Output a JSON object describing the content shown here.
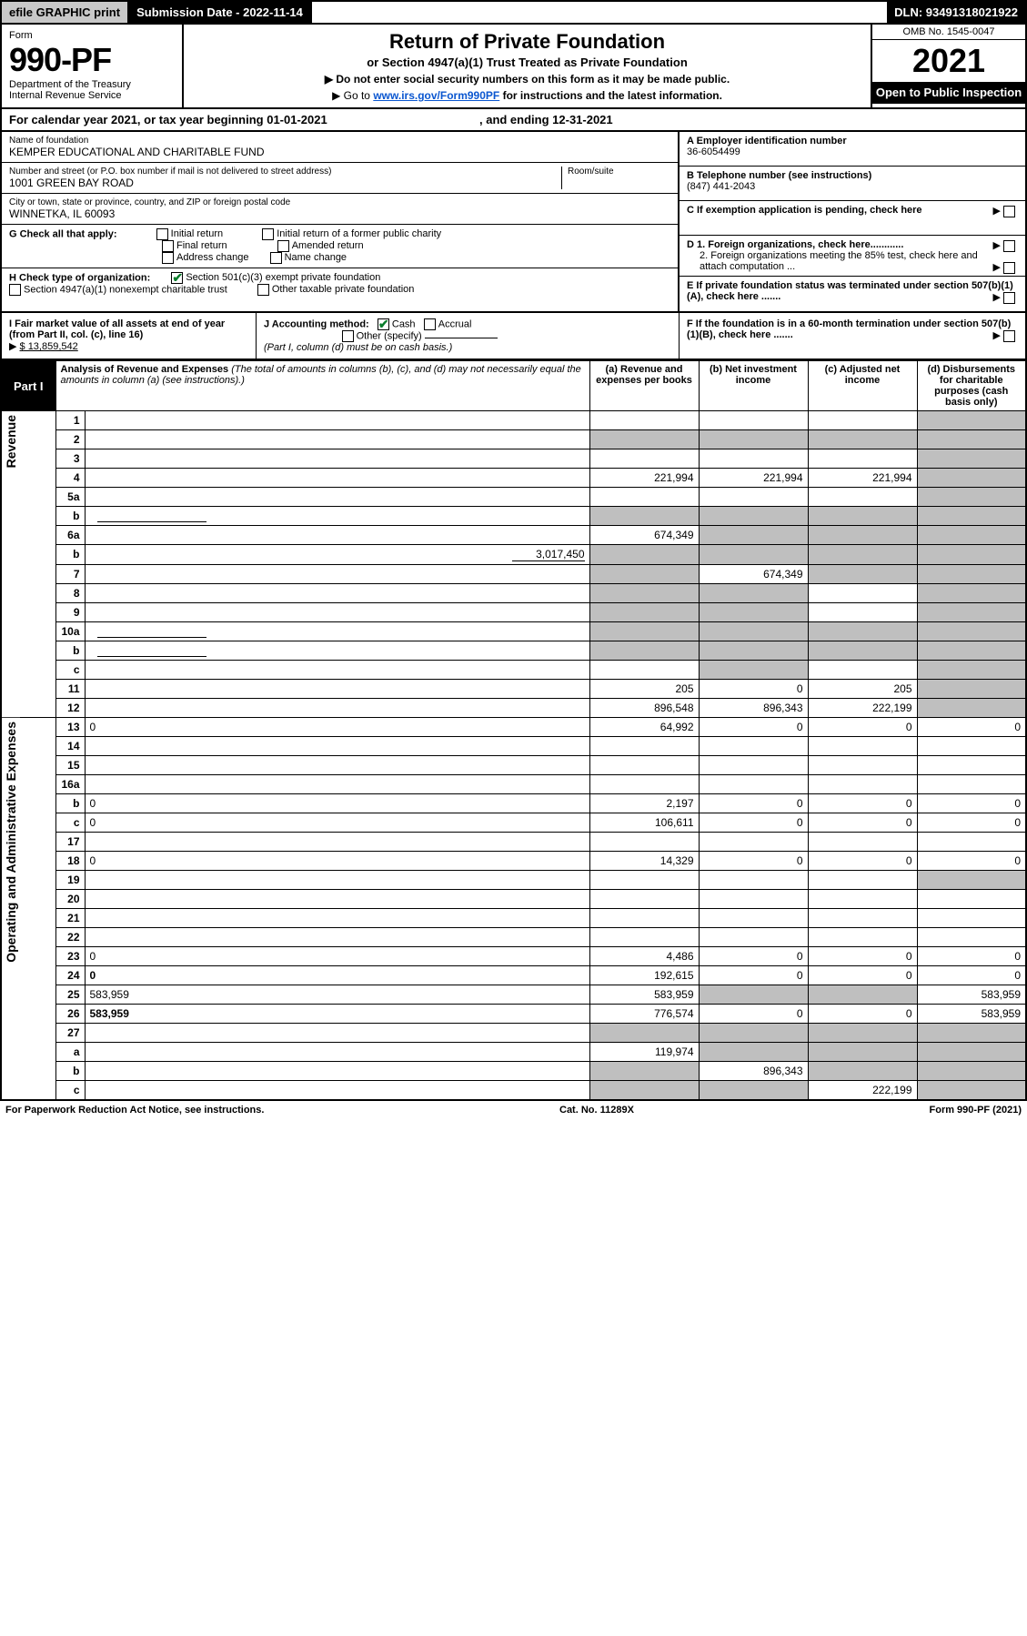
{
  "topbar": {
    "efile": "efile GRAPHIC print",
    "sub_label": "Submission Date - 2022-11-14",
    "dln": "DLN: 93491318021922"
  },
  "header": {
    "form_label": "Form",
    "form_no": "990-PF",
    "dept": "Department of the Treasury\nInternal Revenue Service",
    "title": "Return of Private Foundation",
    "subtitle": "or Section 4947(a)(1) Trust Treated as Private Foundation",
    "instr1": "▶ Do not enter social security numbers on this form as it may be made public.",
    "instr2_pre": "▶ Go to ",
    "instr2_link": "www.irs.gov/Form990PF",
    "instr2_post": " for instructions and the latest information.",
    "omb": "OMB No. 1545-0047",
    "year": "2021",
    "open": "Open to Public Inspection"
  },
  "yearline": {
    "pre": "For calendar year 2021, or tax year beginning 01-01-2021",
    "mid": ", and ending 12-31-2021"
  },
  "info": {
    "name_lbl": "Name of foundation",
    "name_val": "KEMPER EDUCATIONAL AND CHARITABLE FUND",
    "addr_lbl": "Number and street (or P.O. box number if mail is not delivered to street address)",
    "addr_val": "1001 GREEN BAY ROAD",
    "room_lbl": "Room/suite",
    "city_lbl": "City or town, state or province, country, and ZIP or foreign postal code",
    "city_val": "WINNETKA, IL  60093",
    "ein_lbl": "A Employer identification number",
    "ein_val": "36-6054499",
    "tel_lbl": "B Telephone number (see instructions)",
    "tel_val": "(847) 441-2043",
    "c_lbl": "C If exemption application is pending, check here",
    "d1_lbl": "D 1. Foreign organizations, check here............",
    "d2_lbl": "2. Foreign organizations meeting the 85% test, check here and attach computation ...",
    "e_lbl": "E  If private foundation status was terminated under section 507(b)(1)(A), check here .......",
    "f_lbl": "F  If the foundation is in a 60-month termination under section 507(b)(1)(B), check here ......."
  },
  "g": {
    "lead": "G Check all that apply:",
    "opts": [
      "Initial return",
      "Final return",
      "Address change",
      "Initial return of a former public charity",
      "Amended return",
      "Name change"
    ]
  },
  "h": {
    "lead": "H Check type of organization:",
    "opt1": "Section 501(c)(3) exempt private foundation",
    "opt2": "Section 4947(a)(1) nonexempt charitable trust",
    "opt3": "Other taxable private foundation"
  },
  "ijf": {
    "i_lbl": "I Fair market value of all assets at end of year (from Part II, col. (c), line 16)",
    "i_val": "$  13,859,542",
    "j_lbl": "J Accounting method:",
    "j_cash": "Cash",
    "j_accr": "Accrual",
    "j_other": "Other (specify)",
    "j_note": "(Part I, column (d) must be on cash basis.)"
  },
  "part1": {
    "tag": "Part I",
    "title": "Analysis of Revenue and Expenses",
    "note": "(The total of amounts in columns (b), (c), and (d) may not necessarily equal the amounts in column (a) (see instructions).)",
    "col_a": "(a)   Revenue and expenses per books",
    "col_b": "(b)   Net investment income",
    "col_c": "(c)   Adjusted net income",
    "col_d": "(d)   Disbursements for charitable purposes (cash basis only)"
  },
  "sections": {
    "rev": "Revenue",
    "exp": "Operating and Administrative Expenses"
  },
  "rows": [
    {
      "n": "1",
      "d": "",
      "a": "",
      "b": "",
      "c": "",
      "shade": [
        "d"
      ]
    },
    {
      "n": "2",
      "d": "",
      "a": "",
      "b": "",
      "c": "",
      "shade": [
        "a",
        "b",
        "c",
        "d"
      ],
      "boldnot": true
    },
    {
      "n": "3",
      "d": "",
      "a": "",
      "b": "",
      "c": "",
      "shade": [
        "d"
      ]
    },
    {
      "n": "4",
      "d": "",
      "a": "221,994",
      "b": "221,994",
      "c": "221,994",
      "shade": [
        "d"
      ]
    },
    {
      "n": "5a",
      "d": "",
      "a": "",
      "b": "",
      "c": "",
      "shade": [
        "d"
      ]
    },
    {
      "n": "b",
      "d": "",
      "a": "",
      "b": "",
      "c": "",
      "shade": [
        "a",
        "b",
        "c",
        "d"
      ],
      "inline": true
    },
    {
      "n": "6a",
      "d": "",
      "a": "674,349",
      "b": "",
      "c": "",
      "shade": [
        "b",
        "c",
        "d"
      ]
    },
    {
      "n": "b",
      "d": "",
      "inline_val": "3,017,450",
      "a": "",
      "b": "",
      "c": "",
      "shade": [
        "a",
        "b",
        "c",
        "d"
      ]
    },
    {
      "n": "7",
      "d": "",
      "a": "",
      "b": "674,349",
      "c": "",
      "shade": [
        "a",
        "c",
        "d"
      ]
    },
    {
      "n": "8",
      "d": "",
      "a": "",
      "b": "",
      "c": "",
      "shade": [
        "a",
        "b",
        "d"
      ]
    },
    {
      "n": "9",
      "d": "",
      "a": "",
      "b": "",
      "c": "",
      "shade": [
        "a",
        "b",
        "d"
      ]
    },
    {
      "n": "10a",
      "d": "",
      "a": "",
      "b": "",
      "c": "",
      "shade": [
        "a",
        "b",
        "c",
        "d"
      ],
      "inline": true
    },
    {
      "n": "b",
      "d": "",
      "a": "",
      "b": "",
      "c": "",
      "shade": [
        "a",
        "b",
        "c",
        "d"
      ],
      "inline": true
    },
    {
      "n": "c",
      "d": "",
      "a": "",
      "b": "",
      "c": "",
      "shade": [
        "b",
        "d"
      ]
    },
    {
      "n": "11",
      "d": "",
      "a": "205",
      "b": "0",
      "c": "205",
      "shade": [
        "d"
      ]
    },
    {
      "n": "12",
      "d": "",
      "a": "896,548",
      "b": "896,343",
      "c": "222,199",
      "shade": [
        "d"
      ],
      "bold": true
    },
    {
      "n": "13",
      "d": "0",
      "a": "64,992",
      "b": "0",
      "c": "0",
      "sec": "exp"
    },
    {
      "n": "14",
      "d": "",
      "a": "",
      "b": "",
      "c": ""
    },
    {
      "n": "15",
      "d": "",
      "a": "",
      "b": "",
      "c": ""
    },
    {
      "n": "16a",
      "d": "",
      "a": "",
      "b": "",
      "c": ""
    },
    {
      "n": "b",
      "d": "0",
      "a": "2,197",
      "b": "0",
      "c": "0"
    },
    {
      "n": "c",
      "d": "0",
      "a": "106,611",
      "b": "0",
      "c": "0"
    },
    {
      "n": "17",
      "d": "",
      "a": "",
      "b": "",
      "c": ""
    },
    {
      "n": "18",
      "d": "0",
      "a": "14,329",
      "b": "0",
      "c": "0"
    },
    {
      "n": "19",
      "d": "",
      "a": "",
      "b": "",
      "c": "",
      "shade": [
        "d"
      ]
    },
    {
      "n": "20",
      "d": "",
      "a": "",
      "b": "",
      "c": ""
    },
    {
      "n": "21",
      "d": "",
      "a": "",
      "b": "",
      "c": ""
    },
    {
      "n": "22",
      "d": "",
      "a": "",
      "b": "",
      "c": ""
    },
    {
      "n": "23",
      "d": "0",
      "a": "4,486",
      "b": "0",
      "c": "0"
    },
    {
      "n": "24",
      "d": "0",
      "a": "192,615",
      "b": "0",
      "c": "0",
      "bold": true
    },
    {
      "n": "25",
      "d": "583,959",
      "a": "583,959",
      "b": "",
      "c": "",
      "shade": [
        "b",
        "c"
      ]
    },
    {
      "n": "26",
      "d": "583,959",
      "a": "776,574",
      "b": "0",
      "c": "0",
      "bold": true
    },
    {
      "n": "27",
      "d": "",
      "a": "",
      "b": "",
      "c": "",
      "shade": [
        "a",
        "b",
        "c",
        "d"
      ]
    },
    {
      "n": "a",
      "d": "",
      "a": "119,974",
      "b": "",
      "c": "",
      "shade": [
        "b",
        "c",
        "d"
      ],
      "bold": true
    },
    {
      "n": "b",
      "d": "",
      "a": "",
      "b": "896,343",
      "c": "",
      "shade": [
        "a",
        "c",
        "d"
      ],
      "bold": true
    },
    {
      "n": "c",
      "d": "",
      "a": "",
      "b": "",
      "c": "222,199",
      "shade": [
        "a",
        "b",
        "d"
      ],
      "bold": true
    }
  ],
  "footer": {
    "left": "For Paperwork Reduction Act Notice, see instructions.",
    "mid": "Cat. No. 11289X",
    "right": "Form 990-PF (2021)"
  },
  "colors": {
    "shade": "#bfbfbf",
    "link": "#0b57d0",
    "check": "#0a7d2c"
  }
}
